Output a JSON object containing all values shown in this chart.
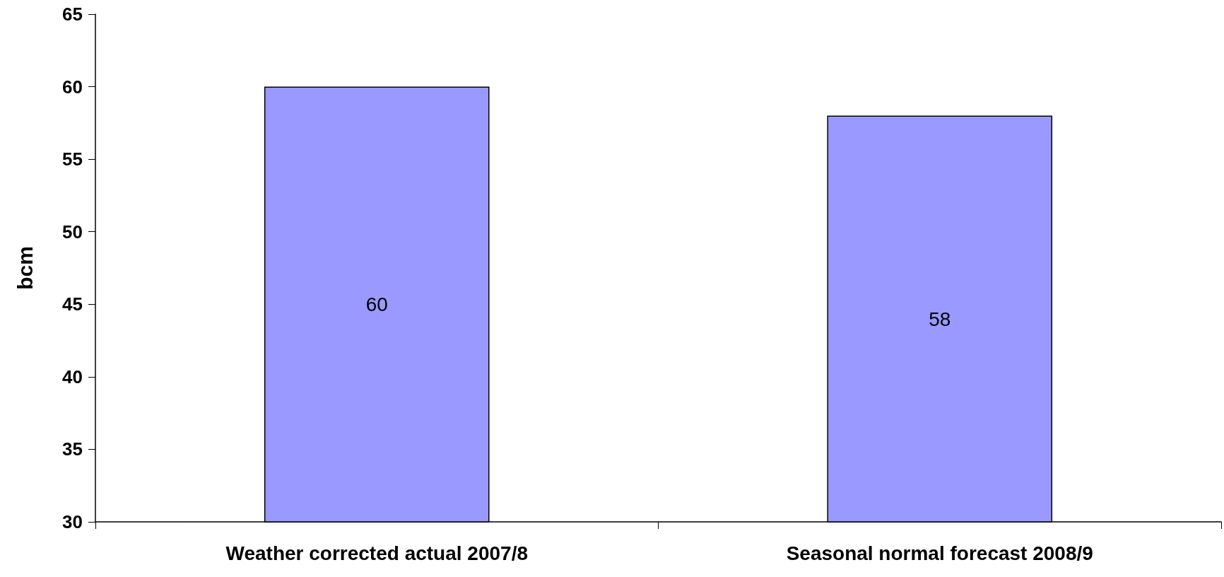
{
  "chart_data": {
    "type": "bar",
    "ylabel": "bcm",
    "categories": [
      "Weather corrected actual 2007/8",
      "Seasonal normal forecast 2008/9"
    ],
    "values": [
      60,
      58
    ],
    "color": "#9999ff",
    "ylim": [
      30,
      65
    ],
    "yticks": [
      30,
      35,
      40,
      45,
      50,
      55,
      60,
      65
    ],
    "grid": false,
    "data_labels": true
  }
}
